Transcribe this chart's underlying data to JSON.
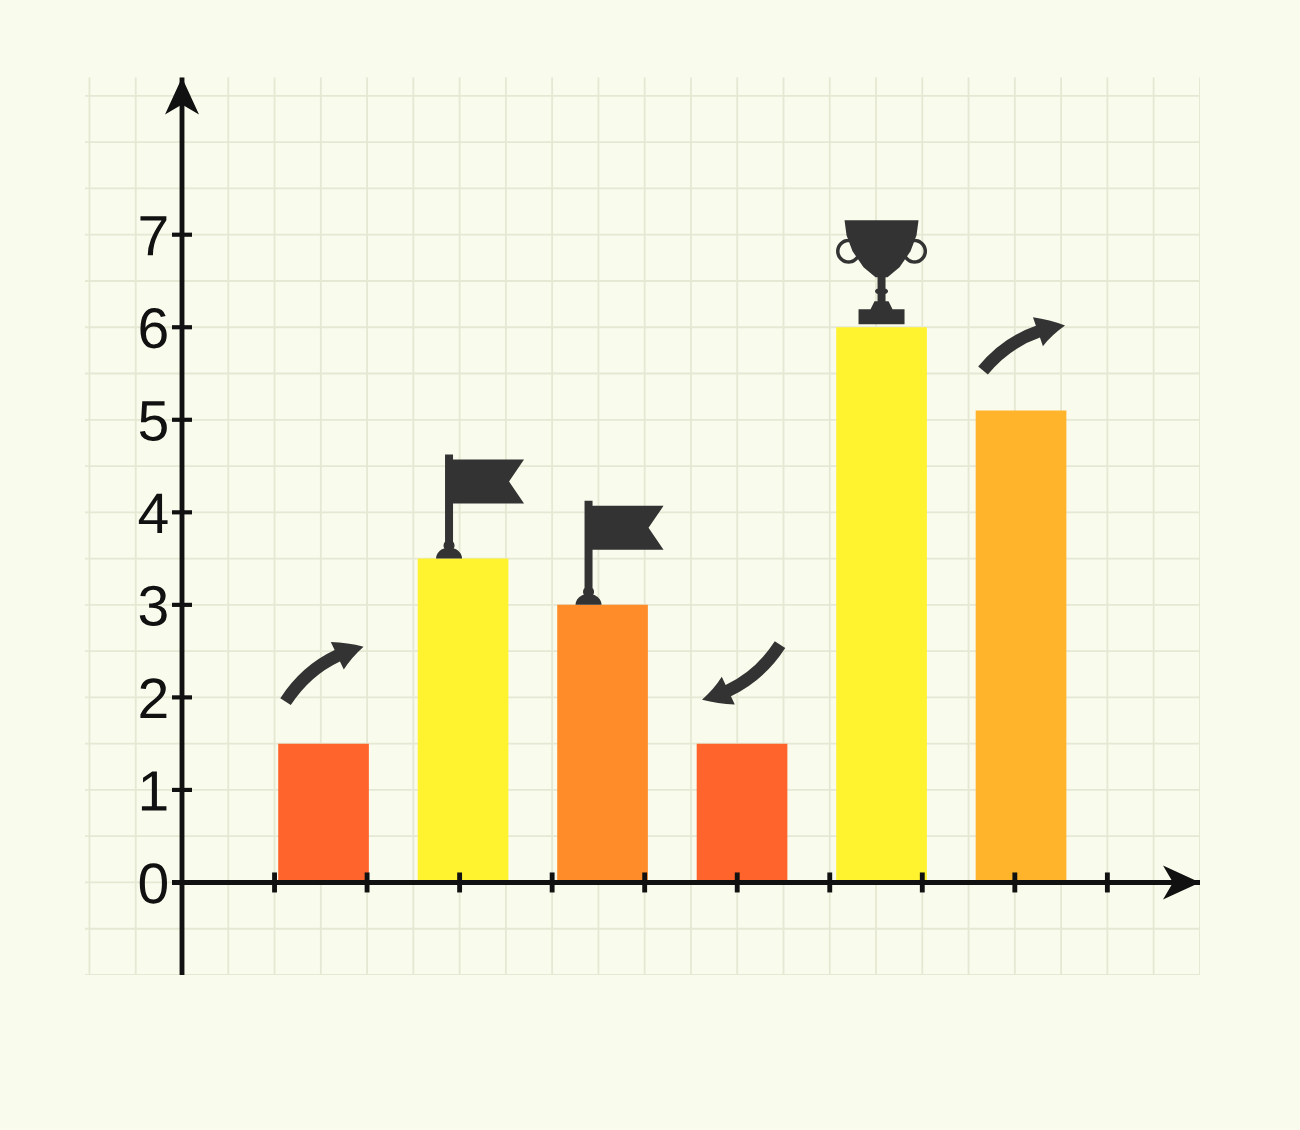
{
  "chart_data": {
    "type": "bar",
    "categories": [
      null,
      null,
      null,
      null,
      null,
      null
    ],
    "values": [
      1.5,
      3.5,
      3,
      1.5,
      6,
      5.1
    ],
    "colors": [
      "#ff642d",
      "#fff22e",
      "#ff8c28",
      "#ff642d",
      "#fff22e",
      "#ffb42c"
    ],
    "ylim": [
      -1,
      8.7
    ],
    "yticks": [
      0,
      1,
      2,
      3,
      4,
      5,
      6,
      7
    ],
    "grid": true
  }
}
